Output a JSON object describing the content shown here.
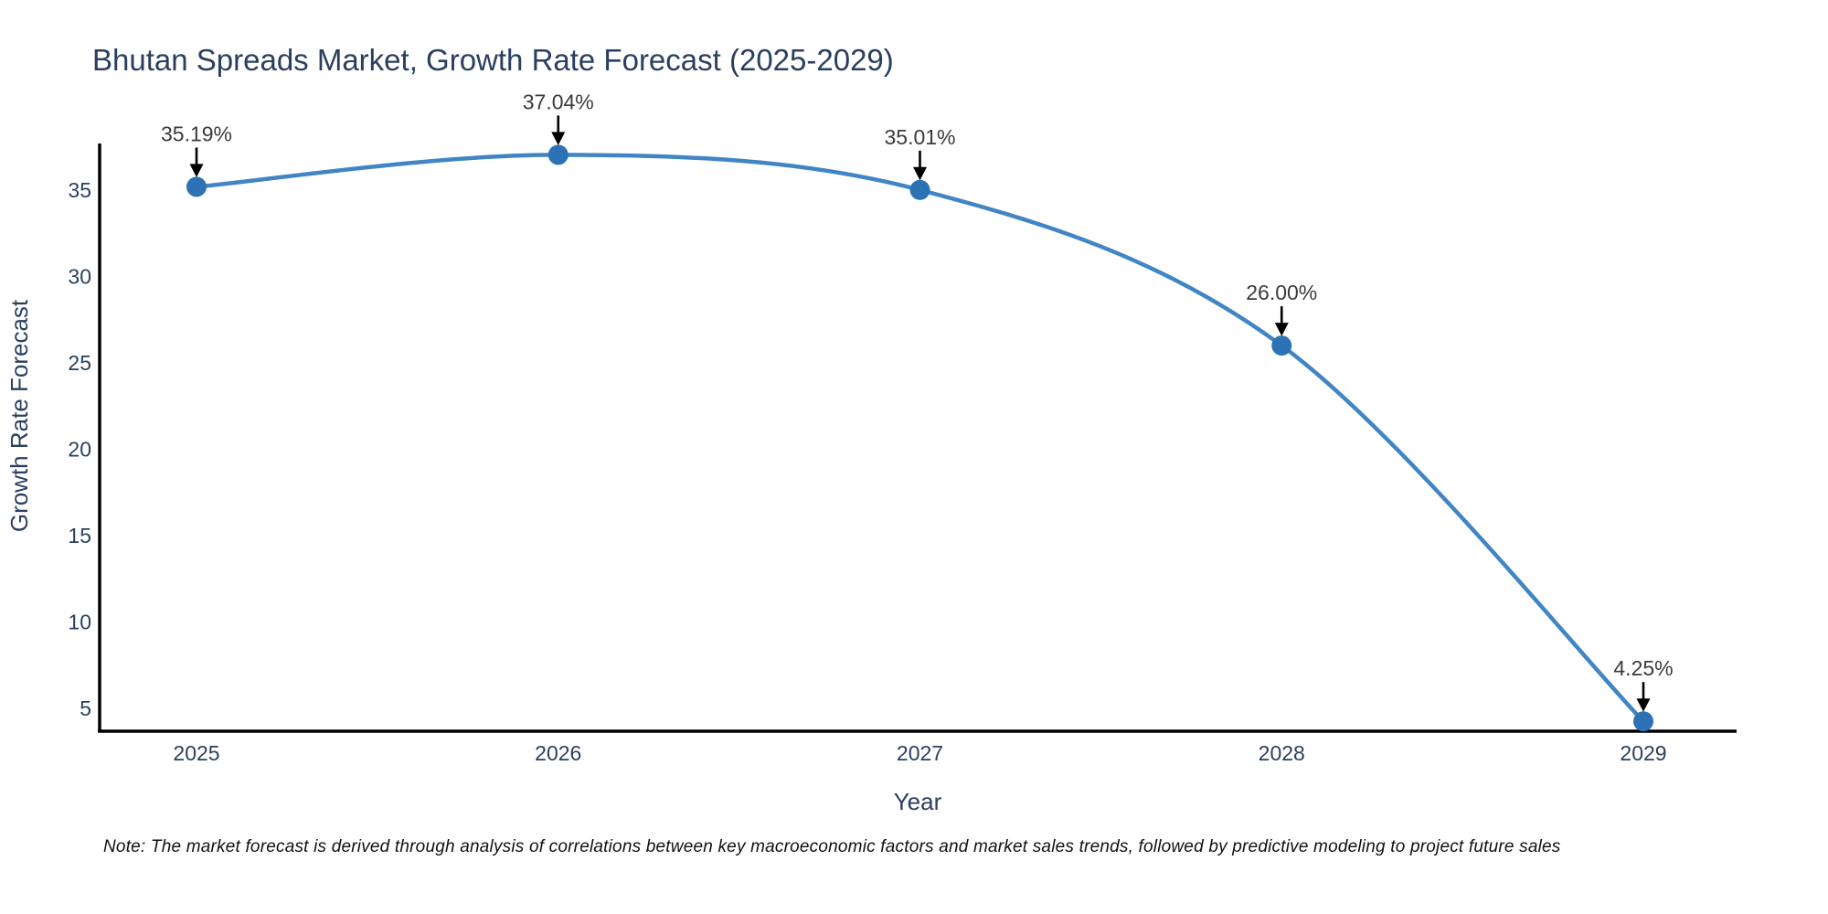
{
  "title": "Bhutan Spreads Market, Growth Rate Forecast (2025-2029)",
  "note": "Note: The market forecast is derived through analysis of correlations between key macroeconomic factors and market sales trends, followed by predictive modeling to project future sales",
  "chart_data": {
    "type": "line",
    "title": "Bhutan Spreads Market, Growth Rate Forecast (2025-2029)",
    "xlabel": "Year",
    "ylabel": "Growth Rate Forecast",
    "categories": [
      "2025",
      "2026",
      "2027",
      "2028",
      "2029"
    ],
    "values": [
      35.19,
      37.04,
      35.01,
      26.0,
      4.25
    ],
    "point_labels": [
      "35.19%",
      "37.04%",
      "35.01%",
      "26.00%",
      "4.25%"
    ],
    "yticks": [
      5,
      10,
      15,
      20,
      25,
      30,
      35
    ],
    "ylim": [
      3.7,
      37.6
    ],
    "grid": false,
    "line_shape": "spline",
    "legend": "none",
    "colors": {
      "line": "#4185c5",
      "marker": "#2d72b5",
      "arrow": "#000000",
      "axis_line": "#000000",
      "tick_text": "#2a3f5f",
      "axis_title_text": "#2a3f5f",
      "title_text": "#2a3f5f",
      "annotation_text": "#3b3b3b",
      "note_text": "#111111",
      "background": "#ffffff"
    }
  }
}
